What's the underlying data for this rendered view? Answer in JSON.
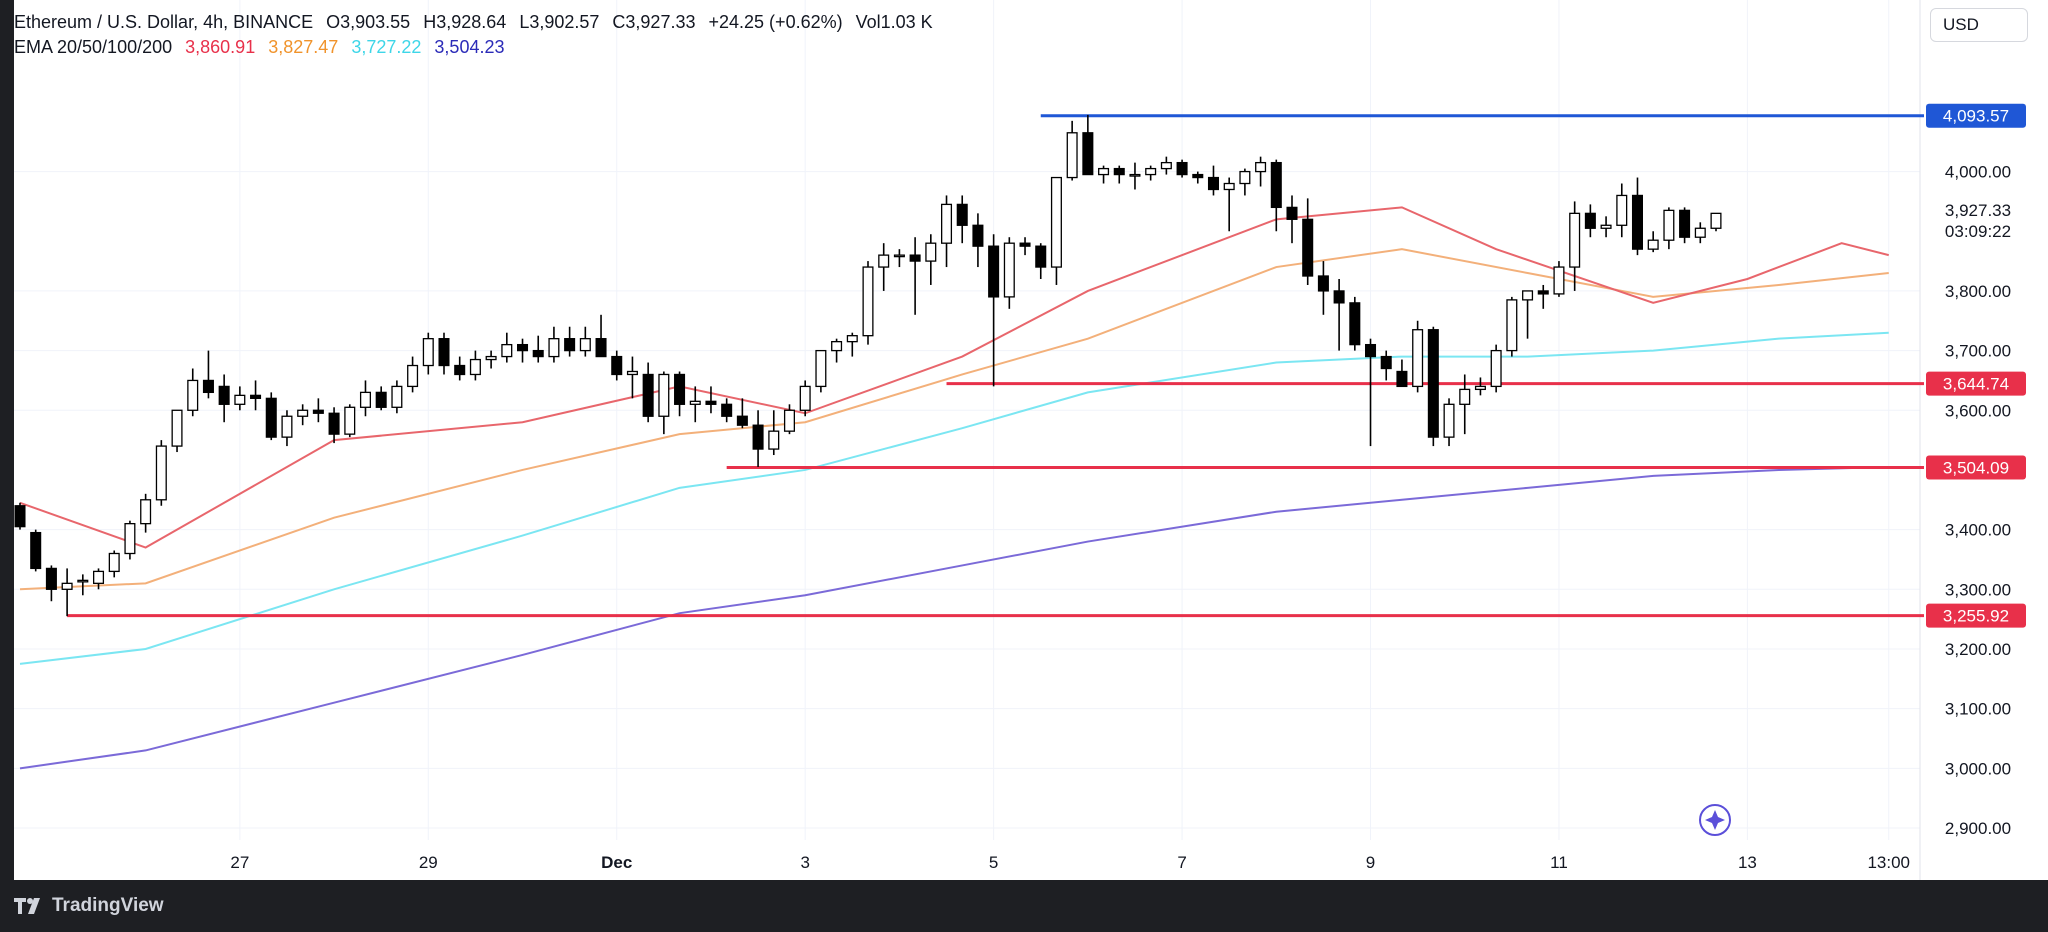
{
  "header": {
    "symbol": "Ethereum / U.S. Dollar, 4h, BINANCE",
    "open": "O3,903.55",
    "high": "H3,928.64",
    "low": "L3,902.57",
    "close": "C3,927.33",
    "change": "+24.25 (+0.62%)",
    "volume": "Vol1.03 K",
    "ema_label": "EMA 20/50/100/200",
    "ema_values": [
      "3,860.91",
      "3,827.47",
      "3,727.22",
      "3,504.23"
    ]
  },
  "currency_button": "USD",
  "footer": {
    "brand": "TradingView"
  },
  "colors": {
    "ema20": "#e8666c",
    "ema50": "#f3b07a",
    "ema100": "#7be6f2",
    "ema200": "#7b6ad8",
    "resistance": "#1f57d6",
    "support": "#e8304a",
    "up": "#ffffff",
    "down": "#000000"
  },
  "chart_data": {
    "type": "candlestick",
    "y_axis": {
      "min": 2870,
      "max": 4175,
      "ticks": [
        "4,000.00",
        "3,800.00",
        "3,700.00",
        "3,600.00",
        "3,400.00",
        "3,300.00",
        "3,200.00",
        "3,100.00",
        "3,000.00",
        "2,900.00"
      ],
      "tick_values": [
        4000,
        3800,
        3700,
        3600,
        3400,
        3300,
        3200,
        3100,
        3000,
        2900
      ]
    },
    "x_axis": {
      "labels": [
        "27",
        "29",
        "Dec",
        "3",
        "5",
        "7",
        "9",
        "11",
        "13",
        "13:00"
      ],
      "label_index": [
        14,
        26,
        38,
        50,
        62,
        74,
        86,
        98,
        110,
        119
      ]
    },
    "last_price": "3,927.33",
    "countdown": "03:09:22",
    "levels": [
      {
        "label": "4,093.57",
        "value": 4093.57,
        "type": "resistance",
        "start_index": 65
      },
      {
        "label": "3,644.74",
        "value": 3644.74,
        "type": "support",
        "start_index": 59
      },
      {
        "label": "3,504.09",
        "value": 3504.09,
        "type": "support",
        "start_index": 45
      },
      {
        "label": "3,255.92",
        "value": 3255.92,
        "type": "support",
        "start_index": 3
      }
    ],
    "candles": [
      [
        3440,
        3445,
        3400,
        3405
      ],
      [
        3395,
        3400,
        3330,
        3335
      ],
      [
        3335,
        3340,
        3280,
        3300
      ],
      [
        3300,
        3335,
        3255,
        3310
      ],
      [
        3315,
        3325,
        3290,
        3315
      ],
      [
        3310,
        3335,
        3300,
        3330
      ],
      [
        3330,
        3365,
        3320,
        3360
      ],
      [
        3360,
        3415,
        3350,
        3410
      ],
      [
        3410,
        3460,
        3395,
        3450
      ],
      [
        3450,
        3550,
        3440,
        3540
      ],
      [
        3540,
        3600,
        3530,
        3600
      ],
      [
        3600,
        3670,
        3590,
        3650
      ],
      [
        3650,
        3700,
        3620,
        3630
      ],
      [
        3640,
        3660,
        3580,
        3610
      ],
      [
        3610,
        3640,
        3600,
        3625
      ],
      [
        3625,
        3650,
        3600,
        3620
      ],
      [
        3620,
        3630,
        3550,
        3555
      ],
      [
        3555,
        3600,
        3540,
        3590
      ],
      [
        3590,
        3610,
        3575,
        3600
      ],
      [
        3600,
        3620,
        3580,
        3595
      ],
      [
        3595,
        3605,
        3545,
        3560
      ],
      [
        3560,
        3610,
        3555,
        3605
      ],
      [
        3605,
        3650,
        3590,
        3630
      ],
      [
        3630,
        3640,
        3600,
        3605
      ],
      [
        3605,
        3650,
        3595,
        3640
      ],
      [
        3640,
        3690,
        3630,
        3675
      ],
      [
        3675,
        3730,
        3660,
        3720
      ],
      [
        3720,
        3730,
        3660,
        3675
      ],
      [
        3675,
        3690,
        3650,
        3660
      ],
      [
        3660,
        3700,
        3650,
        3685
      ],
      [
        3685,
        3700,
        3670,
        3690
      ],
      [
        3690,
        3730,
        3680,
        3710
      ],
      [
        3710,
        3720,
        3680,
        3700
      ],
      [
        3700,
        3725,
        3680,
        3690
      ],
      [
        3690,
        3740,
        3680,
        3720
      ],
      [
        3720,
        3740,
        3690,
        3700
      ],
      [
        3700,
        3740,
        3690,
        3720
      ],
      [
        3720,
        3760,
        3690,
        3690
      ],
      [
        3690,
        3700,
        3650,
        3660
      ],
      [
        3660,
        3690,
        3620,
        3665
      ],
      [
        3660,
        3680,
        3580,
        3590
      ],
      [
        3590,
        3665,
        3560,
        3660
      ],
      [
        3660,
        3665,
        3590,
        3610
      ],
      [
        3610,
        3640,
        3580,
        3615
      ],
      [
        3615,
        3640,
        3595,
        3610
      ],
      [
        3610,
        3620,
        3580,
        3590
      ],
      [
        3590,
        3620,
        3570,
        3575
      ],
      [
        3575,
        3600,
        3505,
        3535
      ],
      [
        3535,
        3600,
        3525,
        3565
      ],
      [
        3565,
        3610,
        3560,
        3600
      ],
      [
        3600,
        3650,
        3590,
        3640
      ],
      [
        3640,
        3700,
        3630,
        3700
      ],
      [
        3700,
        3720,
        3680,
        3715
      ],
      [
        3715,
        3730,
        3690,
        3725
      ],
      [
        3725,
        3850,
        3710,
        3840
      ],
      [
        3840,
        3880,
        3800,
        3860
      ],
      [
        3860,
        3870,
        3840,
        3860
      ],
      [
        3860,
        3890,
        3760,
        3850
      ],
      [
        3850,
        3895,
        3810,
        3880
      ],
      [
        3880,
        3960,
        3840,
        3945
      ],
      [
        3945,
        3960,
        3880,
        3910
      ],
      [
        3910,
        3930,
        3840,
        3875
      ],
      [
        3875,
        3895,
        3640,
        3790
      ],
      [
        3790,
        3890,
        3770,
        3880
      ],
      [
        3880,
        3890,
        3860,
        3875
      ],
      [
        3875,
        3880,
        3820,
        3840
      ],
      [
        3840,
        3990,
        3810,
        3990
      ],
      [
        3990,
        4085,
        3985,
        4065
      ],
      [
        4065,
        4095,
        3995,
        3995
      ],
      [
        3995,
        4010,
        3980,
        4005
      ],
      [
        4005,
        4010,
        3980,
        3995
      ],
      [
        3995,
        4015,
        3970,
        3995
      ],
      [
        3995,
        4010,
        3985,
        4005
      ],
      [
        4005,
        4025,
        3995,
        4015
      ],
      [
        4015,
        4020,
        3990,
        3995
      ],
      [
        3995,
        4000,
        3980,
        3990
      ],
      [
        3990,
        4010,
        3960,
        3970
      ],
      [
        3970,
        3990,
        3900,
        3980
      ],
      [
        3980,
        4005,
        3960,
        4000
      ],
      [
        4000,
        4025,
        3975,
        4015
      ],
      [
        4015,
        4020,
        3900,
        3940
      ],
      [
        3940,
        3960,
        3880,
        3920
      ],
      [
        3920,
        3955,
        3810,
        3825
      ],
      [
        3825,
        3850,
        3760,
        3800
      ],
      [
        3800,
        3820,
        3700,
        3780
      ],
      [
        3780,
        3790,
        3700,
        3710
      ],
      [
        3710,
        3720,
        3540,
        3690
      ],
      [
        3690,
        3700,
        3650,
        3670
      ],
      [
        3665,
        3685,
        3640,
        3640
      ],
      [
        3640,
        3750,
        3630,
        3735
      ],
      [
        3735,
        3740,
        3540,
        3555
      ],
      [
        3555,
        3620,
        3540,
        3610
      ],
      [
        3610,
        3660,
        3560,
        3635
      ],
      [
        3635,
        3655,
        3625,
        3640
      ],
      [
        3640,
        3710,
        3630,
        3700
      ],
      [
        3700,
        3790,
        3690,
        3785
      ],
      [
        3785,
        3800,
        3720,
        3800
      ],
      [
        3800,
        3810,
        3770,
        3795
      ],
      [
        3795,
        3850,
        3790,
        3840
      ],
      [
        3840,
        3950,
        3800,
        3930
      ],
      [
        3930,
        3945,
        3890,
        3905
      ],
      [
        3905,
        3925,
        3890,
        3910
      ],
      [
        3910,
        3980,
        3890,
        3960
      ],
      [
        3960,
        3990,
        3860,
        3870
      ],
      [
        3870,
        3900,
        3865,
        3885
      ],
      [
        3885,
        3940,
        3870,
        3935
      ],
      [
        3935,
        3940,
        3880,
        3890
      ],
      [
        3890,
        3915,
        3880,
        3905
      ],
      [
        3905,
        3930,
        3900,
        3930
      ]
    ],
    "ema20": [
      [
        0,
        3445
      ],
      [
        8,
        3370
      ],
      [
        20,
        3550
      ],
      [
        32,
        3580
      ],
      [
        42,
        3640
      ],
      [
        50,
        3595
      ],
      [
        60,
        3690
      ],
      [
        68,
        3800
      ],
      [
        80,
        3920
      ],
      [
        88,
        3940
      ],
      [
        94,
        3870
      ],
      [
        104,
        3780
      ],
      [
        110,
        3820
      ],
      [
        116,
        3880
      ],
      [
        119,
        3860
      ]
    ],
    "ema50": [
      [
        0,
        3300
      ],
      [
        8,
        3310
      ],
      [
        20,
        3420
      ],
      [
        32,
        3500
      ],
      [
        42,
        3560
      ],
      [
        50,
        3580
      ],
      [
        60,
        3660
      ],
      [
        68,
        3720
      ],
      [
        80,
        3840
      ],
      [
        88,
        3870
      ],
      [
        96,
        3830
      ],
      [
        104,
        3790
      ],
      [
        112,
        3810
      ],
      [
        119,
        3830
      ]
    ],
    "ema100": [
      [
        0,
        3175
      ],
      [
        8,
        3200
      ],
      [
        20,
        3300
      ],
      [
        32,
        3390
      ],
      [
        42,
        3470
      ],
      [
        50,
        3500
      ],
      [
        60,
        3570
      ],
      [
        68,
        3630
      ],
      [
        80,
        3680
      ],
      [
        88,
        3690
      ],
      [
        96,
        3690
      ],
      [
        104,
        3700
      ],
      [
        112,
        3720
      ],
      [
        119,
        3730
      ]
    ],
    "ema200": [
      [
        0,
        3000
      ],
      [
        8,
        3030
      ],
      [
        20,
        3110
      ],
      [
        32,
        3190
      ],
      [
        42,
        3260
      ],
      [
        50,
        3290
      ],
      [
        60,
        3340
      ],
      [
        68,
        3380
      ],
      [
        80,
        3430
      ],
      [
        88,
        3450
      ],
      [
        96,
        3470
      ],
      [
        104,
        3490
      ],
      [
        112,
        3500
      ],
      [
        119,
        3505
      ]
    ]
  }
}
